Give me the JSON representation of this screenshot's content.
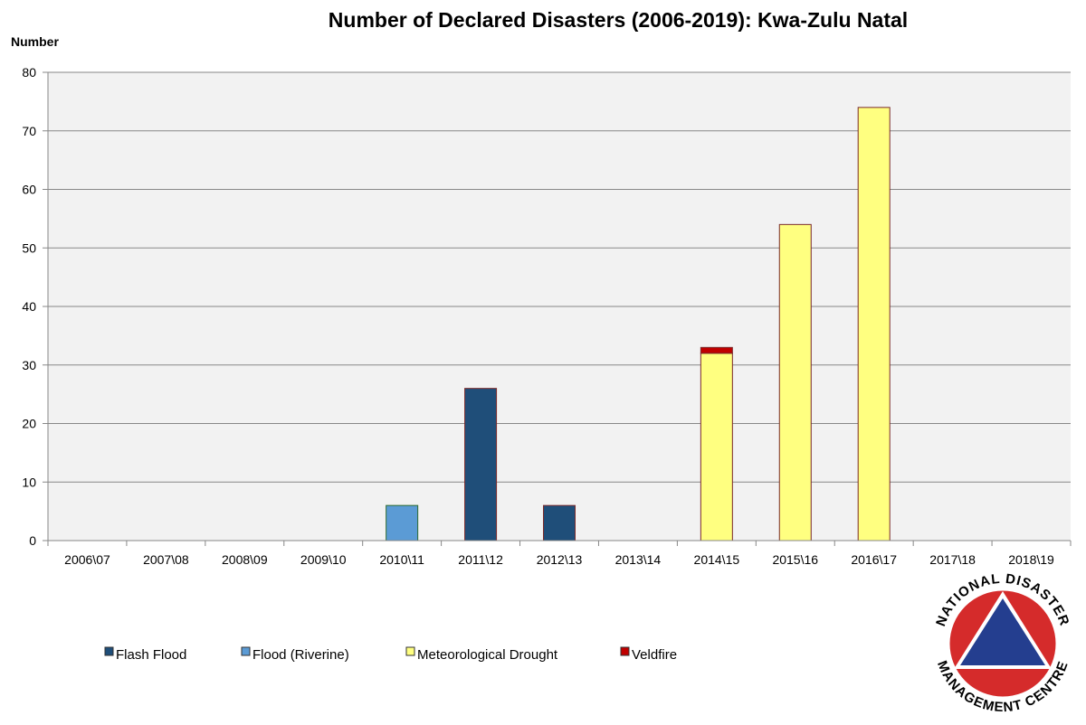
{
  "chart_data": {
    "type": "bar",
    "stacked": true,
    "title": "Number of Declared Disasters (2006-2019): Kwa-Zulu Natal",
    "ylabel": "Number",
    "xlabel": "",
    "ylim": [
      0,
      80
    ],
    "yticks": [
      0,
      10,
      20,
      30,
      40,
      50,
      60,
      70,
      80
    ],
    "grid": true,
    "legend_position": "bottom",
    "categories": [
      "2006\\07",
      "2007\\08",
      "2008\\09",
      "2009\\10",
      "2010\\11",
      "2011\\12",
      "2012\\13",
      "2013\\14",
      "2014\\15",
      "2015\\16",
      "2016\\17",
      "2017\\18",
      "2018\\19"
    ],
    "series": [
      {
        "name": "Flash Flood",
        "color": "#1f4e79",
        "values": [
          0,
          0,
          0,
          0,
          0,
          26,
          6,
          0,
          0,
          0,
          0,
          0,
          0
        ]
      },
      {
        "name": "Flood (Riverine)",
        "color": "#5b9bd5",
        "values": [
          0,
          0,
          0,
          0,
          6,
          0,
          0,
          0,
          0,
          0,
          0,
          0,
          0
        ]
      },
      {
        "name": "Meteorological Drought",
        "color": "#ffff80",
        "values": [
          0,
          0,
          0,
          0,
          0,
          0,
          0,
          0,
          32,
          54,
          74,
          0,
          0
        ]
      },
      {
        "name": "Veldfire",
        "color": "#c00000",
        "values": [
          0,
          0,
          0,
          0,
          0,
          0,
          0,
          0,
          1,
          0,
          0,
          0,
          0
        ]
      }
    ]
  },
  "logo": {
    "top_text": "NATIONAL DISASTER",
    "bottom_text": "MANAGEMENT CENTRE",
    "ring_color": "#d52b2b",
    "triangle_color": "#243e8f"
  }
}
